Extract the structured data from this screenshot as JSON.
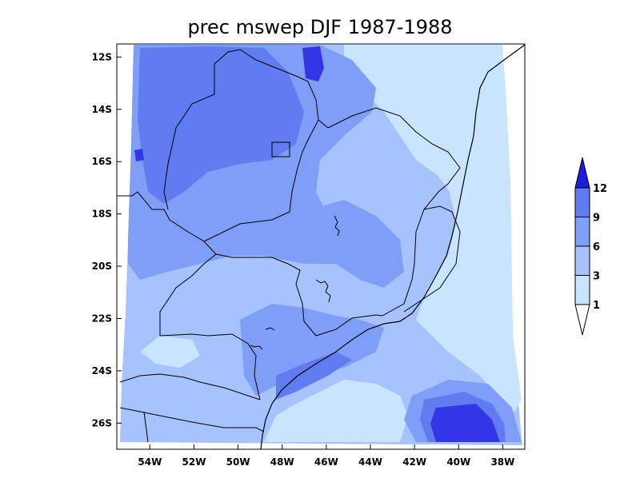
{
  "title": "prec mswep DJF 1987-1988",
  "y_axis": {
    "labels": [
      "12S",
      "14S",
      "16S",
      "18S",
      "20S",
      "22S",
      "24S",
      "26S"
    ],
    "values": [
      -12,
      -14,
      -16,
      -18,
      -20,
      -22,
      -24,
      -26
    ]
  },
  "x_axis": {
    "labels": [
      "54W",
      "52W",
      "50W",
      "48W",
      "46W",
      "44W",
      "42W",
      "40W",
      "38W"
    ],
    "values": [
      -54,
      -52,
      -50,
      -48,
      -46,
      -44,
      -42,
      -40,
      -38
    ]
  },
  "extent": {
    "lon": [
      -55.5,
      -37
    ],
    "lat": [
      -27,
      -11.5
    ]
  },
  "colorbar": {
    "levels": [
      "1",
      "3",
      "6",
      "9",
      "12"
    ],
    "colors": [
      "#c8e4ff",
      "#a6c2ff",
      "#7f9ef7",
      "#5f7cf0",
      "#3535e8"
    ],
    "below_color": "#ffffff",
    "above_color": "#1c1ce0"
  },
  "colors": {
    "background": "#ffffff",
    "outline": "#000000"
  }
}
